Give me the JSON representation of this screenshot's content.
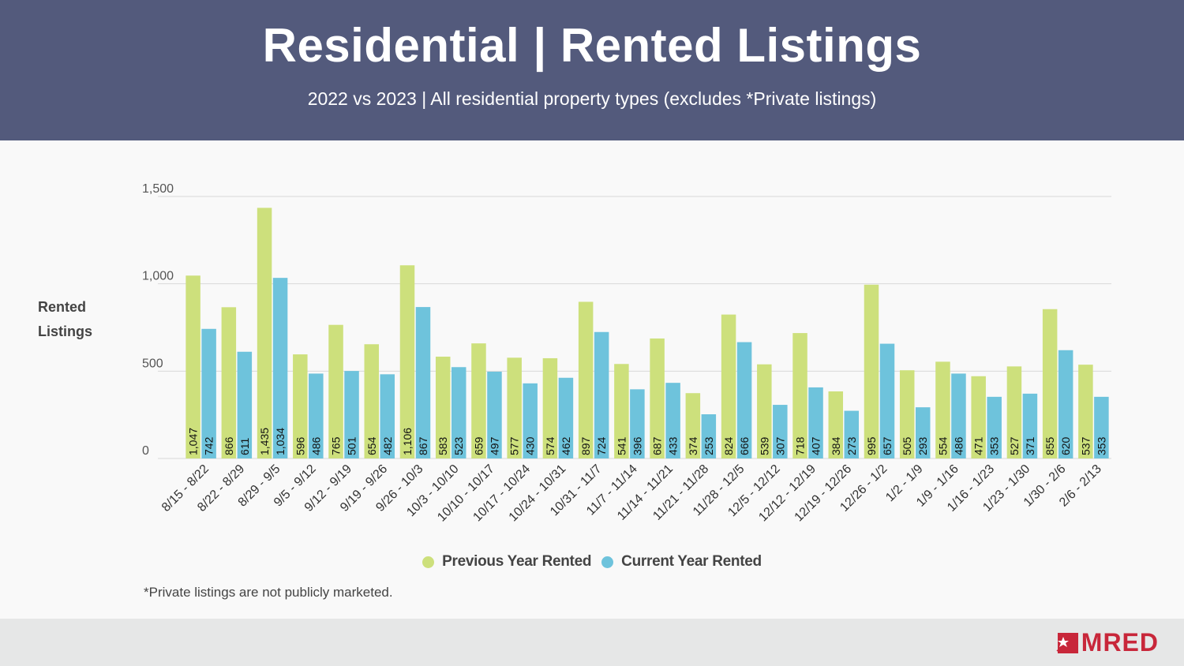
{
  "header": {
    "title": "Residential | Rented Listings",
    "subtitle": "2022 vs 2023 | All residential property types (excludes *Private listings)"
  },
  "footnote": "*Private listings are not publicly marketed.",
  "logo": {
    "text": "MRED",
    "icon": "mred-star-icon",
    "color": "#c8273a"
  },
  "colors": {
    "previous": "#cde07c",
    "current": "#6ec3dc",
    "header": "#535a7c"
  },
  "chart_data": {
    "type": "bar",
    "ylabel": "Rented Listings",
    "ylim": [
      0,
      1500
    ],
    "yticks": [
      {
        "value": 0,
        "label": "0"
      },
      {
        "value": 500,
        "label": "500"
      },
      {
        "value": 1000,
        "label": "1,000"
      },
      {
        "value": 1500,
        "label": "1,500"
      }
    ],
    "grid": true,
    "legend_position": "bottom",
    "categories": [
      "8/15 - 8/22",
      "8/22 - 8/29",
      "8/29 - 9/5",
      "9/5 - 9/12",
      "9/12 - 9/19",
      "9/19 - 9/26",
      "9/26 - 10/3",
      "10/3 - 10/10",
      "10/10 - 10/17",
      "10/17 - 10/24",
      "10/24 - 10/31",
      "10/31 - 11/7",
      "11/7 - 11/14",
      "11/14 - 11/21",
      "11/21 - 11/28",
      "11/28 - 12/5",
      "12/5 - 12/12",
      "12/12 - 12/19",
      "12/19 - 12/26",
      "12/26 - 1/2",
      "1/2 - 1/9",
      "1/9 - 1/16",
      "1/16 - 1/23",
      "1/23 - 1/30",
      "1/30 - 2/6",
      "2/6 - 2/13"
    ],
    "series": [
      {
        "name": "Previous Year Rented",
        "color": "#cde07c",
        "values": [
          1047,
          866,
          1435,
          596,
          765,
          654,
          1106,
          583,
          659,
          577,
          574,
          897,
          541,
          687,
          374,
          824,
          539,
          718,
          384,
          995,
          505,
          554,
          471,
          527,
          855,
          537
        ],
        "labels": [
          "1,047",
          "866",
          "1,435",
          "596",
          "765",
          "654",
          "1,106",
          "583",
          "659",
          "577",
          "574",
          "897",
          "541",
          "687",
          "374",
          "824",
          "539",
          "718",
          "384",
          "995",
          "505",
          "554",
          "471",
          "527",
          "855",
          "537"
        ]
      },
      {
        "name": "Current Year Rented",
        "color": "#6ec3dc",
        "values": [
          742,
          611,
          1034,
          486,
          501,
          482,
          867,
          523,
          497,
          430,
          462,
          724,
          396,
          433,
          253,
          666,
          307,
          407,
          273,
          657,
          293,
          486,
          353,
          371,
          620,
          353
        ],
        "labels": [
          "742",
          "611",
          "1,034",
          "486",
          "501",
          "482",
          "867",
          "523",
          "497",
          "430",
          "462",
          "724",
          "396",
          "433",
          "253",
          "666",
          "307",
          "407",
          "273",
          "657",
          "293",
          "486",
          "353",
          "371",
          "620",
          "353"
        ]
      }
    ]
  }
}
